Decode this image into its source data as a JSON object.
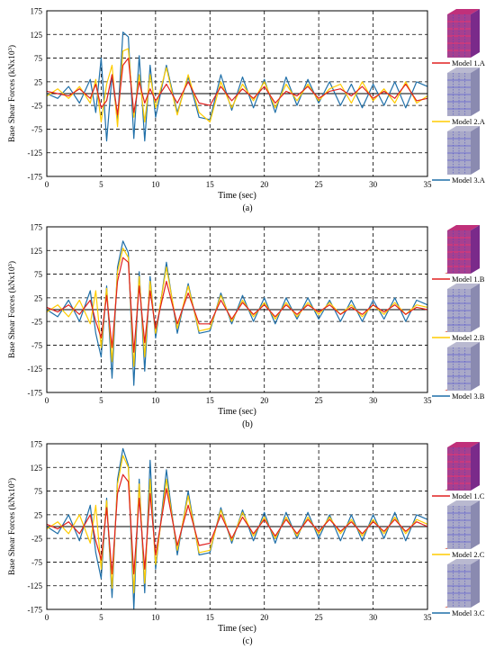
{
  "chart_data": [
    {
      "panel": "a",
      "caption": "(a)",
      "type": "line",
      "xlabel": "Time (sec)",
      "ylabel": "Base Shear Forces (kNx10",
      "ylabel_sup": "3",
      "ylabel_end": ")",
      "xlim": [
        0,
        35
      ],
      "ylim": [
        -175,
        175
      ],
      "x_ticks": [
        0,
        5,
        10,
        15,
        20,
        25,
        30,
        35
      ],
      "y_ticks": [
        175,
        125,
        75,
        25,
        -25,
        -75,
        -125,
        -175
      ],
      "grid": true,
      "legend": "right",
      "series": [
        {
          "name": "Model 1.A",
          "color": "#e02020",
          "x": [
            0,
            1,
            2,
            3,
            4,
            4.5,
            5,
            5.5,
            6,
            6.5,
            7,
            7.5,
            8,
            8.5,
            9,
            9.5,
            10,
            11,
            12,
            13,
            14,
            15,
            16,
            17,
            18,
            19,
            20,
            21,
            22,
            23,
            24,
            25,
            26,
            27,
            28,
            29,
            30,
            31,
            32,
            33,
            34,
            35
          ],
          "y": [
            5,
            0,
            -5,
            10,
            -10,
            20,
            -30,
            -15,
            40,
            -45,
            60,
            75,
            -40,
            25,
            -20,
            10,
            -15,
            20,
            -20,
            25,
            -20,
            -25,
            15,
            -15,
            10,
            -10,
            15,
            -20,
            5,
            -5,
            15,
            -10,
            5,
            10,
            -5,
            15,
            -10,
            5,
            -10,
            20,
            -15,
            -10
          ]
        },
        {
          "name": "Model 2.A",
          "color": "#ffcc00",
          "x": [
            0,
            1,
            2,
            3,
            4,
            4.5,
            5,
            5.5,
            6,
            6.5,
            7,
            7.5,
            8,
            8.5,
            9,
            9.5,
            10,
            11,
            12,
            13,
            14,
            15,
            16,
            17,
            18,
            19,
            20,
            21,
            22,
            23,
            24,
            25,
            26,
            27,
            28,
            29,
            30,
            31,
            32,
            33,
            34,
            35
          ],
          "y": [
            -5,
            10,
            -10,
            15,
            -20,
            30,
            -60,
            20,
            60,
            -70,
            90,
            95,
            -50,
            40,
            -60,
            40,
            -30,
            55,
            -45,
            40,
            -40,
            -60,
            25,
            -30,
            20,
            -15,
            25,
            -30,
            20,
            -15,
            20,
            -15,
            10,
            20,
            -20,
            25,
            -15,
            10,
            -20,
            25,
            -20,
            -5
          ]
        },
        {
          "name": "Model 3.A",
          "color": "#1f6fa8",
          "x": [
            0,
            1,
            2,
            3,
            4,
            4.5,
            5,
            5.5,
            6,
            6.5,
            7,
            7.5,
            8,
            8.5,
            9,
            9.5,
            10,
            11,
            12,
            13,
            14,
            15,
            16,
            17,
            18,
            19,
            20,
            21,
            22,
            23,
            24,
            25,
            26,
            27,
            28,
            29,
            30,
            31,
            32,
            33,
            34,
            35
          ],
          "y": [
            0,
            -10,
            15,
            -20,
            30,
            -40,
            75,
            -100,
            40,
            -60,
            130,
            120,
            -95,
            80,
            -100,
            60,
            -50,
            60,
            -40,
            35,
            -50,
            -55,
            40,
            -35,
            35,
            -30,
            30,
            -40,
            35,
            -25,
            30,
            -20,
            25,
            -25,
            20,
            -30,
            20,
            -25,
            25,
            -30,
            25,
            15
          ]
        }
      ]
    },
    {
      "panel": "b",
      "caption": "(b)",
      "type": "line",
      "xlabel": "Time (sec)",
      "ylabel": "Base Shear Forces (kNx10",
      "ylabel_sup": "3",
      "ylabel_end": ")",
      "xlim": [
        0,
        35
      ],
      "ylim": [
        -175,
        175
      ],
      "x_ticks": [
        0,
        5,
        10,
        15,
        20,
        25,
        30,
        35
      ],
      "y_ticks": [
        175,
        125,
        75,
        25,
        -25,
        -75,
        -125,
        -175
      ],
      "grid": true,
      "legend": "right",
      "series": [
        {
          "name": "Model 1.B",
          "color": "#e02020",
          "x": [
            0,
            1,
            2,
            3,
            4,
            4.5,
            5,
            5.5,
            6,
            6.5,
            7,
            7.5,
            8,
            8.5,
            9,
            9.5,
            10,
            11,
            12,
            13,
            14,
            15,
            16,
            17,
            18,
            19,
            20,
            21,
            22,
            23,
            24,
            25,
            26,
            27,
            28,
            29,
            30,
            31,
            32,
            33,
            34,
            35
          ],
          "y": [
            5,
            -5,
            10,
            -10,
            20,
            -25,
            -60,
            30,
            -80,
            60,
            110,
            100,
            -90,
            50,
            -70,
            40,
            -40,
            60,
            -30,
            35,
            -30,
            -30,
            20,
            -20,
            15,
            -10,
            10,
            -15,
            10,
            -10,
            10,
            -5,
            10,
            -10,
            5,
            -10,
            10,
            -5,
            10,
            -10,
            5,
            0
          ]
        },
        {
          "name": "Model 2.B",
          "color": "#ffcc00",
          "x": [
            0,
            1,
            2,
            3,
            4,
            4.5,
            5,
            5.5,
            6,
            6.5,
            7,
            7.5,
            8,
            8.5,
            9,
            9.5,
            10,
            11,
            12,
            13,
            14,
            15,
            16,
            17,
            18,
            19,
            20,
            21,
            22,
            23,
            24,
            25,
            26,
            27,
            28,
            29,
            30,
            31,
            32,
            33,
            34,
            35
          ],
          "y": [
            -5,
            10,
            -15,
            20,
            -30,
            40,
            -80,
            45,
            -110,
            80,
            130,
            110,
            -120,
            70,
            -100,
            60,
            -50,
            90,
            -40,
            50,
            -45,
            -40,
            30,
            -25,
            20,
            -15,
            15,
            -20,
            15,
            -15,
            15,
            -10,
            15,
            -10,
            10,
            -15,
            10,
            -10,
            15,
            -10,
            10,
            5
          ]
        },
        {
          "name": "Model 3.B",
          "color": "#1f6fa8",
          "x": [
            0,
            1,
            2,
            3,
            4,
            4.5,
            5,
            5.5,
            6,
            6.5,
            7,
            7.5,
            8,
            8.5,
            9,
            9.5,
            10,
            11,
            12,
            13,
            14,
            15,
            16,
            17,
            18,
            19,
            20,
            21,
            22,
            23,
            24,
            25,
            26,
            27,
            28,
            29,
            30,
            31,
            32,
            33,
            34,
            35
          ],
          "y": [
            0,
            -15,
            20,
            -25,
            40,
            -50,
            -100,
            50,
            -145,
            90,
            145,
            120,
            -160,
            80,
            -130,
            70,
            -60,
            100,
            -50,
            55,
            -50,
            -45,
            35,
            -30,
            30,
            -25,
            25,
            -30,
            25,
            -20,
            25,
            -20,
            20,
            -25,
            20,
            -25,
            20,
            -20,
            25,
            -25,
            20,
            10
          ]
        }
      ]
    },
    {
      "panel": "c",
      "caption": "(c)",
      "type": "line",
      "xlabel": "Time (sec)",
      "ylabel": "Base Shear Forces (kNx10",
      "ylabel_sup": "3",
      "ylabel_end": ")",
      "xlim": [
        0,
        35
      ],
      "ylim": [
        -175,
        175
      ],
      "x_ticks": [
        0,
        5,
        10,
        15,
        20,
        25,
        30,
        35
      ],
      "y_ticks": [
        175,
        125,
        75,
        25,
        -25,
        -75,
        -125,
        -175
      ],
      "grid": true,
      "legend": "right",
      "series": [
        {
          "name": "Model 1.C",
          "color": "#e02020",
          "x": [
            0,
            1,
            2,
            3,
            4,
            4.5,
            5,
            5.5,
            6,
            6.5,
            7,
            7.5,
            8,
            8.5,
            9,
            9.5,
            10,
            11,
            12,
            13,
            14,
            15,
            16,
            17,
            18,
            19,
            20,
            21,
            22,
            23,
            24,
            25,
            26,
            27,
            28,
            29,
            30,
            31,
            32,
            33,
            34,
            35
          ],
          "y": [
            5,
            -5,
            10,
            -15,
            25,
            -30,
            -70,
            40,
            -100,
            70,
            110,
            95,
            -100,
            60,
            -90,
            70,
            -60,
            80,
            -40,
            45,
            -40,
            -35,
            25,
            -25,
            20,
            -15,
            15,
            -20,
            15,
            -15,
            15,
            -10,
            15,
            -10,
            10,
            -15,
            10,
            -10,
            15,
            -10,
            10,
            0
          ]
        },
        {
          "name": "Model 2.C",
          "color": "#ffcc00",
          "x": [
            0,
            1,
            2,
            3,
            4,
            4.5,
            5,
            5.5,
            6,
            6.5,
            7,
            7.5,
            8,
            8.5,
            9,
            9.5,
            10,
            11,
            12,
            13,
            14,
            15,
            16,
            17,
            18,
            19,
            20,
            21,
            22,
            23,
            24,
            25,
            26,
            27,
            28,
            29,
            30,
            31,
            32,
            33,
            34,
            35
          ],
          "y": [
            -5,
            10,
            -15,
            25,
            -35,
            45,
            -90,
            55,
            -130,
            90,
            150,
            125,
            -140,
            90,
            -120,
            100,
            -80,
            100,
            -50,
            65,
            -55,
            -50,
            35,
            -30,
            30,
            -20,
            20,
            -25,
            20,
            -20,
            20,
            -15,
            20,
            -15,
            15,
            -20,
            15,
            -15,
            20,
            -15,
            15,
            5
          ]
        },
        {
          "name": "Model 3.C",
          "color": "#1f6fa8",
          "x": [
            0,
            1,
            2,
            3,
            4,
            4.5,
            5,
            5.5,
            6,
            6.5,
            7,
            7.5,
            8,
            8.5,
            9,
            9.5,
            10,
            11,
            12,
            13,
            14,
            15,
            16,
            17,
            18,
            19,
            20,
            21,
            22,
            23,
            24,
            25,
            26,
            27,
            28,
            29,
            30,
            31,
            32,
            33,
            34,
            35
          ],
          "y": [
            0,
            -15,
            25,
            -30,
            45,
            -55,
            -110,
            60,
            -150,
            100,
            165,
            130,
            -175,
            100,
            -140,
            140,
            -90,
            120,
            -60,
            75,
            -60,
            -55,
            40,
            -35,
            35,
            -30,
            30,
            -35,
            30,
            -25,
            30,
            -25,
            25,
            -30,
            25,
            -30,
            25,
            -25,
            30,
            -30,
            25,
            15
          ]
        }
      ]
    }
  ]
}
